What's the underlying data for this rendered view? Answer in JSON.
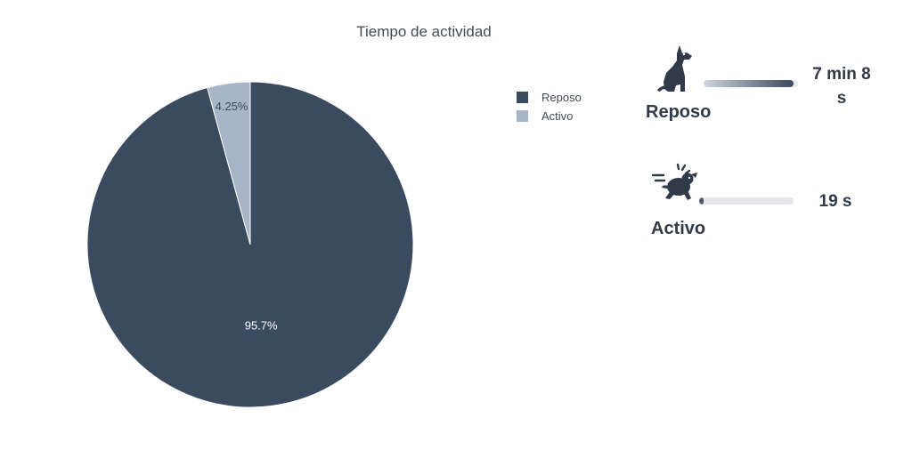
{
  "chart_data": {
    "type": "pie",
    "title": "Tiempo de actividad",
    "labels": [
      "Reposo",
      "Activo"
    ],
    "values": [
      95.75,
      4.25
    ],
    "value_labels": [
      "95.7%",
      "4.25%"
    ],
    "colors": [
      "#3a4a5f",
      "#a8b5c8"
    ],
    "legend_position": "right",
    "start": "12 o'clock, clockwise"
  },
  "activity": {
    "rest": {
      "label": "Reposo",
      "value": "7 min 8 s",
      "fraction": 0.957,
      "icon": "sitting-dog-icon"
    },
    "active": {
      "label": "Activo",
      "value": "19 s",
      "fraction": 0.0425,
      "icon": "running-dog-icon"
    }
  },
  "colors": {
    "rest": "#3a4a5f",
    "active": "#a8b5c8",
    "text": "#303a48",
    "track": "#e6e7ea"
  }
}
